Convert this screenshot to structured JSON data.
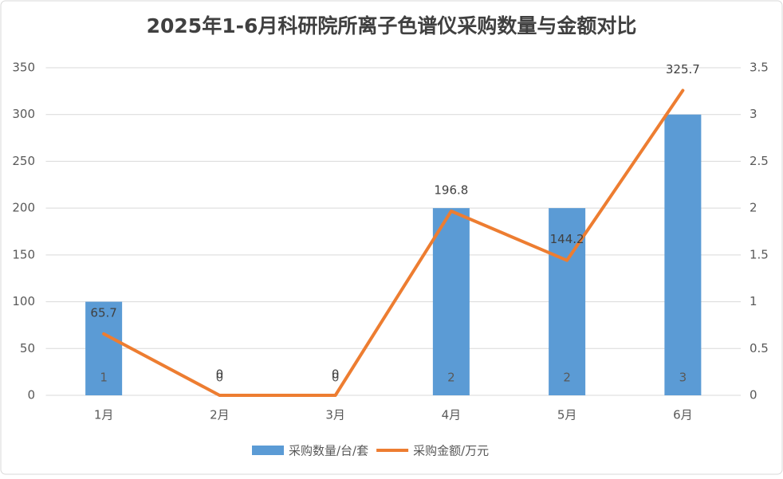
{
  "chart_data": {
    "type": "bar-line",
    "title": "2025年1-6月科研院所离子色谱仪采购数量与金额对比",
    "categories": [
      "1月",
      "2月",
      "3月",
      "4月",
      "5月",
      "6月"
    ],
    "series": [
      {
        "name": "采购数量/台/套",
        "type": "bar",
        "color": "#5b9bd5",
        "axis": "y2",
        "values": [
          1,
          0,
          0,
          2,
          2,
          3
        ]
      },
      {
        "name": "采购金额/万元",
        "type": "line",
        "color": "#ed7d31",
        "axis": "y",
        "values": [
          65.7,
          0,
          0,
          196.8,
          144.2,
          325.7
        ]
      }
    ],
    "ylim": [
      0,
      350
    ],
    "yticks": [
      0,
      50,
      100,
      150,
      200,
      250,
      300,
      350
    ],
    "y2lim": [
      0,
      3.5
    ],
    "y2ticks": [
      0,
      0.5,
      1,
      1.5,
      2,
      2.5,
      3,
      3.5
    ],
    "grid": true,
    "legend": "bottom"
  }
}
